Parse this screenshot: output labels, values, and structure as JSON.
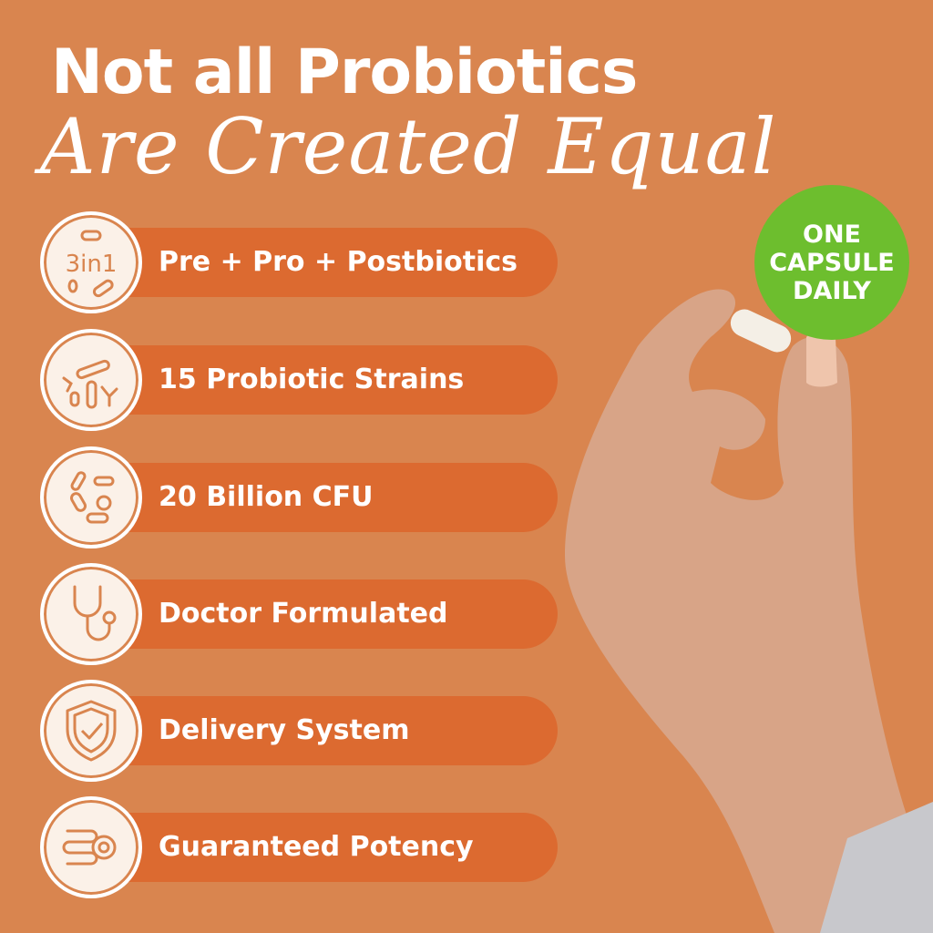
{
  "headline": {
    "line1": "Not all Probiotics",
    "line2": "Are Created Equal"
  },
  "badge": {
    "lines": [
      "ONE",
      "CAPSULE",
      "DAILY"
    ],
    "color": "#6DBE2E"
  },
  "colors": {
    "background": "#D9854F",
    "bar": "#DC6A30",
    "text": "#FFFFFF"
  },
  "features": [
    {
      "label": "Pre + Pro + Postbiotics",
      "icon": "3in1-bacteria-icon",
      "icon_text": "3in1"
    },
    {
      "label": "15 Probiotic Strains",
      "icon": "bacteria-strains-icon"
    },
    {
      "label": "20 Billion CFU",
      "icon": "bacteria-cluster-icon"
    },
    {
      "label": "Doctor Formulated",
      "icon": "stethoscope-icon"
    },
    {
      "label": "Delivery System",
      "icon": "shield-check-icon"
    },
    {
      "label": "Guaranteed Potency",
      "icon": "intestine-icon"
    }
  ]
}
